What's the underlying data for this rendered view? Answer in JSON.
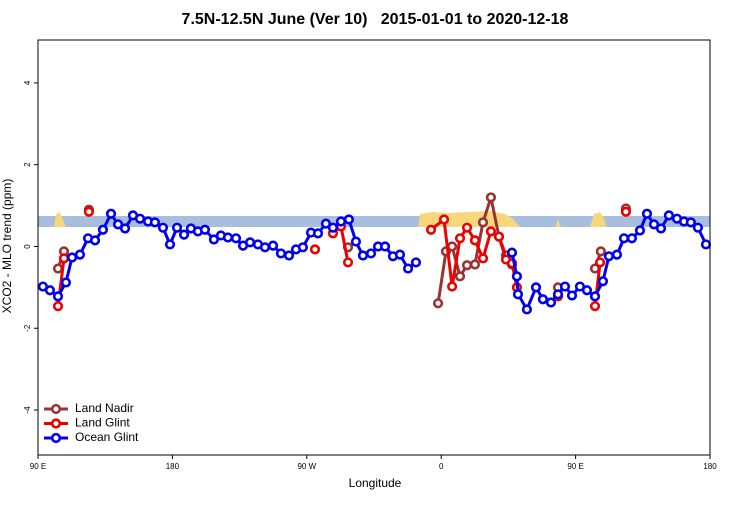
{
  "chart_data": {
    "type": "line",
    "title": "7.5N-12.5N June (Ver 10)   2015-01-01 to 2020-12-18",
    "x_label": "Longitude",
    "y_label": "XCO2 - MLO trend (ppm)",
    "xlim": [
      90,
      540
    ],
    "ylim": [
      -5.1,
      5.05
    ],
    "xticks": [
      {
        "value": 90,
        "label": "90 E"
      },
      180,
      {
        "value": 270,
        "label": "90 W"
      },
      {
        "value": 360,
        "label": "0"
      },
      {
        "value": 450,
        "label": "90 E"
      },
      {
        "value": 540,
        "label": "180"
      }
    ],
    "yticks": [
      -4,
      -2,
      0,
      2,
      4
    ],
    "legend": "bottom-left",
    "series": [
      {
        "name": "Land Nadir",
        "color": "#993333",
        "x": [
          103.4,
          107.4,
          null,
          124.1,
          null,
          297.6,
          null,
          357.9,
          363.2,
          367.3,
          372.6,
          377.3,
          382.6,
          388.0,
          393.3,
          398.7,
          403.4,
          407.4,
          null,
          438.2,
          null,
          463.0,
          466.9,
          null,
          483.7
        ],
        "values": [
          -0.54,
          -0.12,
          null,
          0.9,
          null,
          -0.02,
          null,
          -1.39,
          -0.12,
          0,
          -0.73,
          -0.46,
          -0.44,
          0.59,
          1.2,
          0.24,
          -0.22,
          -0.44,
          null,
          -1.0,
          null,
          -0.54,
          -0.12,
          null,
          0.93
        ]
      },
      {
        "name": "Land Glint",
        "color": "#ee0000",
        "x": [
          103.4,
          107.4,
          null,
          124.1,
          null,
          275.5,
          null,
          287.5,
          292.9,
          297.6,
          null,
          353.2,
          361.9,
          367.3,
          372.6,
          377.3,
          382.6,
          388.0,
          393.3,
          398.7,
          403.4,
          407.4,
          410.7,
          null,
          438.2,
          null,
          463.0,
          466.4,
          null,
          483.7
        ],
        "values": [
          -1.46,
          -0.29,
          null,
          0.85,
          null,
          -0.07,
          null,
          0.32,
          0.49,
          -0.39,
          null,
          0.41,
          0.66,
          -0.98,
          0.2,
          0.46,
          0.15,
          -0.29,
          0.37,
          0.24,
          -0.32,
          -0.41,
          -1.0,
          null,
          -1.22,
          null,
          -1.46,
          -0.39,
          null,
          0.85
        ]
      },
      {
        "name": "Ocean Glint",
        "color": "#0000ee",
        "x": [
          93.3,
          98.0,
          103.4,
          108.7,
          112.8,
          118.1,
          123.5,
          128.2,
          133.5,
          138.9,
          143.6,
          148.3,
          153.6,
          158.3,
          163.7,
          168.3,
          173.7,
          178.4,
          183.1,
          187.8,
          192.4,
          197.1,
          201.8,
          207.8,
          212.5,
          217.2,
          222.6,
          227.3,
          232.0,
          237.3,
          242.0,
          247.4,
          252.7,
          258.1,
          262.8,
          267.4,
          272.8,
          277.5,
          282.8,
          287.5,
          292.9,
          298.2,
          302.9,
          307.6,
          313.0,
          317.7,
          322.4,
          327.7,
          332.4,
          337.8,
          343.1,
          null,
          407.4,
          410.7,
          411.4,
          417.4,
          423.5,
          428.1,
          433.5,
          438.2,
          442.9,
          447.6,
          452.9,
          457.6,
          463.0,
          468.3,
          472.3,
          477.7,
          482.4,
          487.7,
          493.1,
          497.8,
          502.5,
          507.2,
          512.5,
          517.9,
          522.6,
          527.2,
          531.9,
          537.3
        ],
        "values": [
          -0.98,
          -1.07,
          -1.22,
          -0.88,
          -0.27,
          -0.2,
          0.2,
          0.15,
          0.41,
          0.8,
          0.54,
          0.44,
          0.76,
          0.68,
          0.61,
          0.59,
          0.46,
          0.05,
          0.46,
          0.29,
          0.44,
          0.37,
          0.41,
          0.17,
          0.27,
          0.22,
          0.2,
          0.02,
          0.1,
          0.05,
          -0.02,
          0.02,
          -0.17,
          -0.22,
          -0.07,
          -0.02,
          0.34,
          0.32,
          0.56,
          0.46,
          0.61,
          0.66,
          0.12,
          -0.22,
          -0.17,
          0,
          0,
          -0.24,
          -0.2,
          -0.54,
          -0.39,
          null,
          -0.15,
          -0.73,
          -1.17,
          -1.54,
          -1.0,
          -1.29,
          -1.37,
          -1.17,
          -0.98,
          -1.2,
          -0.98,
          -1.07,
          -1.22,
          -0.85,
          -0.24,
          -0.2,
          0.2,
          0.2,
          0.39,
          0.8,
          0.54,
          0.44,
          0.76,
          0.68,
          0.61,
          0.59,
          0.46,
          0.05
        ]
      }
    ]
  }
}
